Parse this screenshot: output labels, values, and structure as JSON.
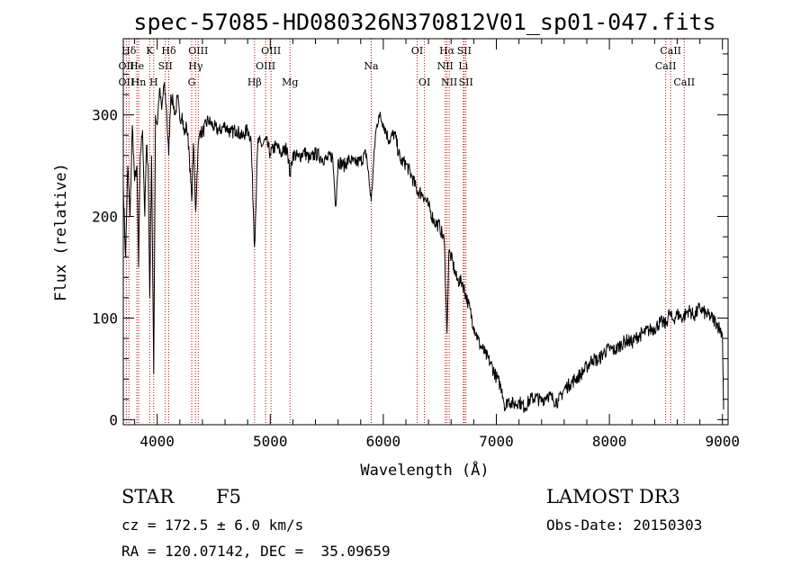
{
  "chart_data": {
    "type": "line",
    "title": "spec-57085-HD080326N370812V01_sp01-047.fits",
    "xlabel": "Wavelength (Å)",
    "ylabel": "Flux (relative)",
    "xlim": [
      3700,
      9050
    ],
    "ylim": [
      -5,
      375
    ],
    "x_ticks": [
      4000,
      5000,
      6000,
      7000,
      8000,
      9000
    ],
    "y_ticks": [
      0,
      100,
      200,
      300
    ],
    "x_minor_step": 200,
    "y_minor_step": 20,
    "spectral_lines": [
      {
        "label": "Hδ",
        "x": 3750,
        "row": 0
      },
      {
        "label": "OII",
        "x": 3727,
        "row": 1
      },
      {
        "label": "OII",
        "x": 3727,
        "row": 2
      },
      {
        "label": "He",
        "x": 3820,
        "row": 1
      },
      {
        "label": "Hn",
        "x": 3835,
        "row": 2
      },
      {
        "label": "K",
        "x": 3934,
        "row": 0
      },
      {
        "label": "H",
        "x": 3969,
        "row": 2
      },
      {
        "label": "SII",
        "x": 4072,
        "row": 1
      },
      {
        "label": "Hδ",
        "x": 4102,
        "row": 0
      },
      {
        "label": "OIII",
        "x": 4363,
        "row": 0
      },
      {
        "label": "Hγ",
        "x": 4340,
        "row": 1
      },
      {
        "label": "G",
        "x": 4305,
        "row": 2
      },
      {
        "label": "Hβ",
        "x": 4861,
        "row": 2
      },
      {
        "label": "OIII",
        "x": 5007,
        "row": 0
      },
      {
        "label": "OIII",
        "x": 4959,
        "row": 1
      },
      {
        "label": "Mg",
        "x": 5175,
        "row": 2
      },
      {
        "label": "Na",
        "x": 5893,
        "row": 1
      },
      {
        "label": "OI",
        "x": 6300,
        "row": 0
      },
      {
        "label": "OI",
        "x": 6364,
        "row": 2
      },
      {
        "label": "Hα",
        "x": 6563,
        "row": 0
      },
      {
        "label": "NII",
        "x": 6548,
        "row": 1
      },
      {
        "label": "NII",
        "x": 6583,
        "row": 2
      },
      {
        "label": "SII",
        "x": 6716,
        "row": 0
      },
      {
        "label": "Li",
        "x": 6708,
        "row": 1
      },
      {
        "label": "SII",
        "x": 6731,
        "row": 2
      },
      {
        "label": "CaII",
        "x": 8542,
        "row": 0
      },
      {
        "label": "CaII",
        "x": 8498,
        "row": 1
      },
      {
        "label": "CaII",
        "x": 8662,
        "row": 2
      }
    ],
    "series": [
      {
        "name": "flux",
        "points": [
          [
            3700,
            230
          ],
          [
            3720,
            160
          ],
          [
            3740,
            250
          ],
          [
            3760,
            200
          ],
          [
            3780,
            290
          ],
          [
            3800,
            235
          ],
          [
            3820,
            250
          ],
          [
            3835,
            150
          ],
          [
            3850,
            260
          ],
          [
            3870,
            285
          ],
          [
            3890,
            200
          ],
          [
            3905,
            270
          ],
          [
            3920,
            250
          ],
          [
            3934,
            120
          ],
          [
            3950,
            260
          ],
          [
            3969,
            45
          ],
          [
            3985,
            300
          ],
          [
            4000,
            290
          ],
          [
            4020,
            325
          ],
          [
            4040,
            305
          ],
          [
            4060,
            330
          ],
          [
            4080,
            310
          ],
          [
            4102,
            260
          ],
          [
            4120,
            320
          ],
          [
            4140,
            312
          ],
          [
            4160,
            300
          ],
          [
            4180,
            318
          ],
          [
            4200,
            295
          ],
          [
            4220,
            302
          ],
          [
            4240,
            280
          ],
          [
            4260,
            290
          ],
          [
            4280,
            268
          ],
          [
            4305,
            215
          ],
          [
            4320,
            272
          ],
          [
            4340,
            205
          ],
          [
            4360,
            265
          ],
          [
            4380,
            285
          ],
          [
            4400,
            282
          ],
          [
            4450,
            295
          ],
          [
            4500,
            288
          ],
          [
            4550,
            284
          ],
          [
            4600,
            290
          ],
          [
            4650,
            282
          ],
          [
            4700,
            286
          ],
          [
            4750,
            278
          ],
          [
            4800,
            286
          ],
          [
            4830,
            276
          ],
          [
            4861,
            170
          ],
          [
            4890,
            274
          ],
          [
            4930,
            270
          ],
          [
            4960,
            275
          ],
          [
            5000,
            262
          ],
          [
            5050,
            270
          ],
          [
            5100,
            262
          ],
          [
            5150,
            268
          ],
          [
            5175,
            240
          ],
          [
            5200,
            262
          ],
          [
            5250,
            258
          ],
          [
            5300,
            264
          ],
          [
            5350,
            256
          ],
          [
            5400,
            262
          ],
          [
            5450,
            258
          ],
          [
            5500,
            256
          ],
          [
            5550,
            260
          ],
          [
            5580,
            210
          ],
          [
            5600,
            255
          ],
          [
            5650,
            250
          ],
          [
            5700,
            256
          ],
          [
            5750,
            252
          ],
          [
            5800,
            255
          ],
          [
            5850,
            262
          ],
          [
            5893,
            215
          ],
          [
            5930,
            280
          ],
          [
            5960,
            300
          ],
          [
            6000,
            292
          ],
          [
            6050,
            275
          ],
          [
            6100,
            282
          ],
          [
            6150,
            255
          ],
          [
            6200,
            252
          ],
          [
            6250,
            240
          ],
          [
            6300,
            225
          ],
          [
            6350,
            222
          ],
          [
            6400,
            210
          ],
          [
            6450,
            195
          ],
          [
            6500,
            190
          ],
          [
            6540,
            175
          ],
          [
            6563,
            85
          ],
          [
            6580,
            165
          ],
          [
            6600,
            160
          ],
          [
            6650,
            138
          ],
          [
            6700,
            135
          ],
          [
            6750,
            115
          ],
          [
            6800,
            92
          ],
          [
            6850,
            75
          ],
          [
            6900,
            65
          ],
          [
            6950,
            55
          ],
          [
            7000,
            42
          ],
          [
            7050,
            30
          ],
          [
            7080,
            10
          ],
          [
            7100,
            20
          ],
          [
            7150,
            15
          ],
          [
            7200,
            18
          ],
          [
            7250,
            12
          ],
          [
            7300,
            20
          ],
          [
            7350,
            22
          ],
          [
            7400,
            18
          ],
          [
            7450,
            25
          ],
          [
            7500,
            20
          ],
          [
            7550,
            18
          ],
          [
            7600,
            30
          ],
          [
            7650,
            35
          ],
          [
            7700,
            40
          ],
          [
            7750,
            45
          ],
          [
            7800,
            52
          ],
          [
            7850,
            60
          ],
          [
            7900,
            58
          ],
          [
            7950,
            66
          ],
          [
            8000,
            70
          ],
          [
            8050,
            68
          ],
          [
            8100,
            74
          ],
          [
            8150,
            78
          ],
          [
            8200,
            76
          ],
          [
            8250,
            82
          ],
          [
            8300,
            85
          ],
          [
            8350,
            88
          ],
          [
            8400,
            90
          ],
          [
            8450,
            96
          ],
          [
            8500,
            94
          ],
          [
            8530,
            105
          ],
          [
            8560,
            98
          ],
          [
            8600,
            104
          ],
          [
            8650,
            100
          ],
          [
            8700,
            108
          ],
          [
            8750,
            102
          ],
          [
            8800,
            110
          ],
          [
            8850,
            104
          ],
          [
            8900,
            101
          ],
          [
            8950,
            95
          ],
          [
            9000,
            85
          ],
          [
            9010,
            10
          ]
        ]
      }
    ]
  },
  "info": {
    "class_label": "STAR",
    "subclass": "F5",
    "survey": "LAMOST DR3",
    "cz_line": "cz = 172.5 ± 6.0 km/s",
    "obs_date_line": "Obs-Date: 20150303",
    "coords_line": "RA = 120.07142, DEC =  35.09659"
  }
}
